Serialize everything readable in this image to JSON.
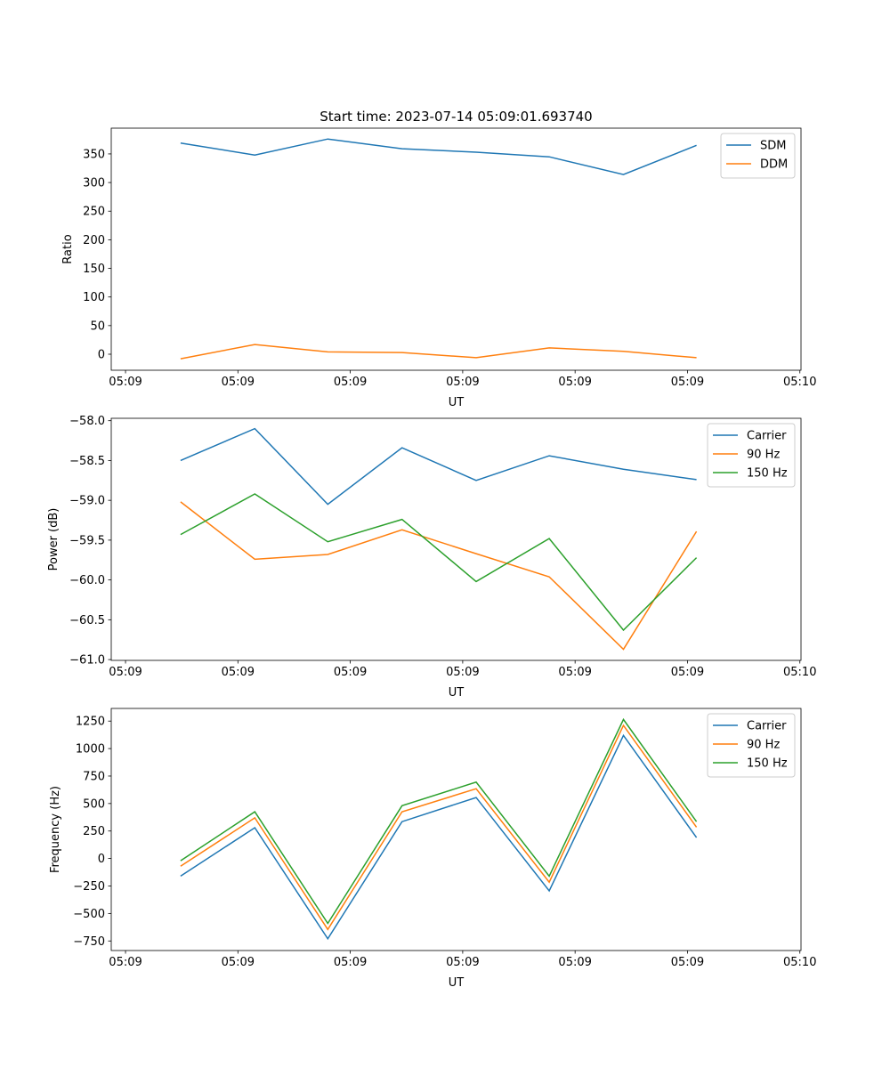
{
  "chart_data": [
    {
      "type": "line",
      "title": "Start time: 2023-07-14 05:09:01.693740",
      "xlabel": "UT",
      "ylabel": "Ratio",
      "x_units": "seconds after 05:09:00",
      "x": [
        4.9,
        11.5,
        18.0,
        24.6,
        31.2,
        37.7,
        44.3,
        50.8
      ],
      "xlim": [
        -1.27,
        60.1
      ],
      "x_ticks": [
        0,
        10,
        20,
        30,
        40,
        50,
        60
      ],
      "x_tick_labels": [
        "05:09",
        "05:09",
        "05:09",
        "05:09",
        "05:09",
        "05:09",
        "05:10"
      ],
      "ylim": [
        -28,
        395
      ],
      "y_ticks": [
        0,
        50,
        100,
        150,
        200,
        250,
        300,
        350
      ],
      "y_tick_labels": [
        "0",
        "50",
        "100",
        "150",
        "200",
        "250",
        "300",
        "350"
      ],
      "legend": "top-right",
      "series": [
        {
          "name": "SDM",
          "color": "#1f77b4",
          "values": [
            369,
            348,
            376,
            359,
            353,
            345,
            314,
            365
          ]
        },
        {
          "name": "DDM",
          "color": "#ff7f0e",
          "values": [
            -8,
            17,
            4,
            3,
            -6,
            11,
            5,
            -6
          ]
        }
      ]
    },
    {
      "type": "line",
      "title": "",
      "xlabel": "UT",
      "ylabel": "Power (dB)",
      "x_units": "seconds after 05:09:00",
      "x": [
        4.9,
        11.5,
        18.0,
        24.6,
        31.2,
        37.7,
        44.3,
        50.8
      ],
      "xlim": [
        -1.27,
        60.1
      ],
      "x_ticks": [
        0,
        10,
        20,
        30,
        40,
        50,
        60
      ],
      "x_tick_labels": [
        "05:09",
        "05:09",
        "05:09",
        "05:09",
        "05:09",
        "05:09",
        "05:10"
      ],
      "ylim": [
        -61.01,
        -57.97
      ],
      "y_ticks": [
        -61.0,
        -60.5,
        -60.0,
        -59.5,
        -59.0,
        -58.5,
        -58.0
      ],
      "y_tick_labels": [
        "−61.0",
        "−60.5",
        "−60.0",
        "−59.5",
        "−59.0",
        "−58.5",
        "−58.0"
      ],
      "legend": "top-right",
      "series": [
        {
          "name": "Carrier",
          "color": "#1f77b4",
          "values": [
            -58.5,
            -58.1,
            -59.05,
            -58.34,
            -58.75,
            -58.44,
            -58.61,
            -58.74
          ]
        },
        {
          "name": "90 Hz",
          "color": "#ff7f0e",
          "values": [
            -59.02,
            -59.74,
            -59.68,
            -59.37,
            -59.67,
            -59.96,
            -60.87,
            -59.39
          ]
        },
        {
          "name": "150 Hz",
          "color": "#2ca02c",
          "values": [
            -59.43,
            -58.92,
            -59.52,
            -59.24,
            -60.02,
            -59.48,
            -60.63,
            -59.72
          ]
        }
      ]
    },
    {
      "type": "line",
      "title": "",
      "xlabel": "UT",
      "ylabel": "Frequency (Hz)",
      "x_units": "seconds after 05:09:00",
      "x": [
        4.9,
        11.5,
        18.0,
        24.6,
        31.2,
        37.7,
        44.3,
        50.8
      ],
      "xlim": [
        -1.27,
        60.1
      ],
      "x_ticks": [
        0,
        10,
        20,
        30,
        40,
        50,
        60
      ],
      "x_tick_labels": [
        "05:09",
        "05:09",
        "05:09",
        "05:09",
        "05:09",
        "05:09",
        "05:10"
      ],
      "ylim": [
        -837,
        1365
      ],
      "y_ticks": [
        -750,
        -500,
        -250,
        0,
        250,
        500,
        750,
        1000,
        1250
      ],
      "y_tick_labels": [
        "−750",
        "−500",
        "−250",
        "0",
        "250",
        "500",
        "750",
        "1000",
        "1250"
      ],
      "legend": "top-right",
      "series": [
        {
          "name": "Carrier",
          "color": "#1f77b4",
          "values": [
            -160,
            280,
            -730,
            335,
            555,
            -295,
            1120,
            190
          ]
        },
        {
          "name": "90 Hz",
          "color": "#ff7f0e",
          "values": [
            -70,
            370,
            -645,
            425,
            635,
            -215,
            1210,
            285
          ]
        },
        {
          "name": "150 Hz",
          "color": "#2ca02c",
          "values": [
            -20,
            425,
            -590,
            480,
            695,
            -160,
            1265,
            335
          ]
        }
      ]
    }
  ]
}
